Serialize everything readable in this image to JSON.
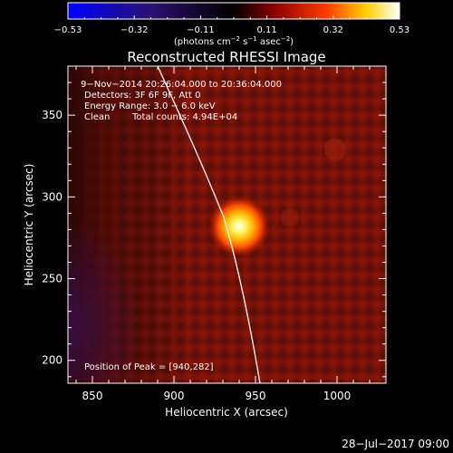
{
  "colorbar": {
    "tick_labels": [
      "−0.53",
      "−0.32",
      "−0.11",
      "0.11",
      "0.32",
      "0.53"
    ],
    "units_prefix": "(photons cm",
    "units_exp1": "−2",
    "units_mid": " s",
    "units_exp2": "−1",
    "units_mid2": " asec",
    "units_exp3": "−2",
    "units_suffix": ")",
    "range": [
      -0.53,
      0.53
    ]
  },
  "image": {
    "title": "Reconstructed RHESSI Image",
    "annotations": {
      "time_range": "9−Nov−2014 20:26:04.000 to 20:36:04.000",
      "detectors": "Detectors: 3F 6F 9F, Att 0",
      "energy_range": "Energy Range: 3.0 − 6.0 keV",
      "clean_label": "Clean",
      "total_counts": "Total counts: 4.94E+04",
      "peak_position": "Position of Peak = [940,282]"
    },
    "x_axis": {
      "label": "Heliocentric X (arcsec)",
      "tick_labels": [
        "850",
        "900",
        "950",
        "1000"
      ],
      "range": [
        835,
        1030
      ]
    },
    "y_axis": {
      "label": "Heliocentric Y (arcsec)",
      "tick_labels": [
        "200",
        "250",
        "300",
        "350"
      ],
      "range": [
        186,
        380
      ]
    },
    "peak": {
      "x": 940,
      "y": 282
    },
    "colors": {
      "background": "#000000",
      "map_base": "#6b0c08",
      "peak_core": "#ffffff",
      "peak_glow": "#ffd400",
      "limb_line": "#ffffff",
      "purple_region": "#3a0d48"
    }
  },
  "footer": {
    "timestamp": "28−Jul−2017 09:00"
  }
}
